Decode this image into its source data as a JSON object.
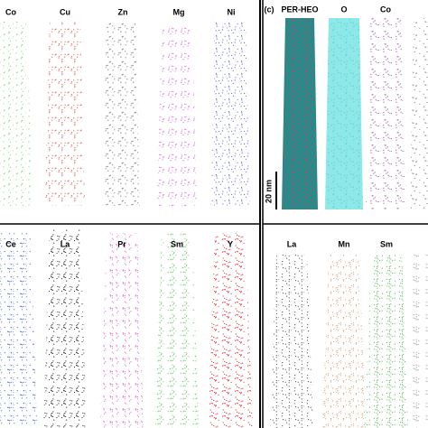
{
  "top_left": {
    "elements": [
      "Co",
      "Cu",
      "Zn",
      "Mg",
      "Ni"
    ]
  },
  "bottom_left": {
    "elements": [
      "Ce",
      "La",
      "Pr",
      "Sm",
      "Y"
    ]
  },
  "top_right": {
    "panel_label": "(c)",
    "elements": [
      "PER-HEO",
      "O",
      "Co"
    ],
    "scale_bar": "20 nm"
  },
  "bottom_right": {
    "elements": [
      "La",
      "Mn",
      "Sm"
    ]
  }
}
